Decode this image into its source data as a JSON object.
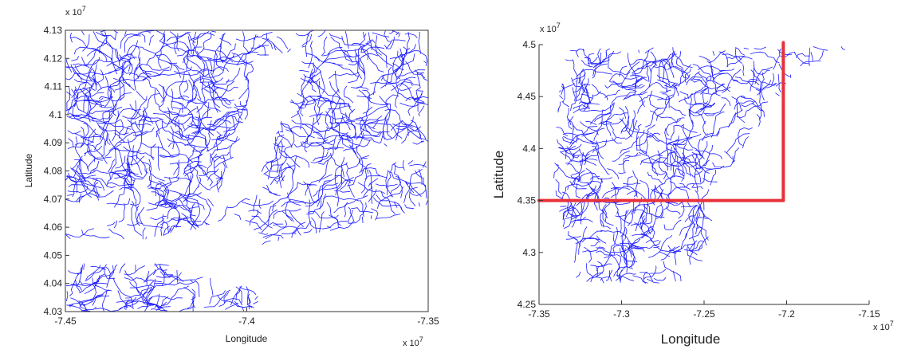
{
  "chart_data": [
    {
      "type": "line",
      "title": "",
      "xlabel": "Longitude",
      "ylabel": "Latitude",
      "x_exponent": "x 10",
      "x_exponent_power": "7",
      "y_exponent": "x 10",
      "y_exponent_power": "7",
      "xlim": [
        -7.45,
        -7.35
      ],
      "ylim": [
        4.03,
        4.13
      ],
      "x_ticks": [
        "-7.45",
        "-7.4",
        "-7.35"
      ],
      "x_tick_values": [
        -7.45,
        -7.4,
        -7.35
      ],
      "y_ticks": [
        "4.03",
        "4.04",
        "4.05",
        "4.06",
        "4.07",
        "4.08",
        "4.09",
        "4.1",
        "4.11",
        "4.12",
        "4.13"
      ],
      "y_tick_values": [
        4.03,
        4.04,
        4.05,
        4.06,
        4.07,
        4.08,
        4.09,
        4.1,
        4.11,
        4.12,
        4.13
      ],
      "series": [
        {
          "color": "#1a1aff",
          "description_points": []
        }
      ]
    },
    {
      "type": "line",
      "title": "",
      "xlabel": "Longitude",
      "ylabel": "Latitude",
      "x_exponent": "x 10",
      "x_exponent_power": "7",
      "y_exponent": "x 10",
      "y_exponent_power": "7",
      "xlim": [
        -7.35,
        -7.15
      ],
      "ylim": [
        4.25,
        4.5
      ],
      "x_ticks": [
        "-7.35",
        "-7.3",
        "-7.25",
        "-7.2",
        "-7.15"
      ],
      "x_tick_values": [
        -7.35,
        -7.3,
        -7.25,
        -7.2,
        -7.15
      ],
      "y_ticks": [
        "4.25",
        "4.3",
        "4.35",
        "4.4",
        "4.45",
        "4.5"
      ],
      "y_tick_values": [
        4.25,
        4.3,
        4.35,
        4.4,
        4.45,
        4.5
      ],
      "series": [
        {
          "color": "#1a1aff"
        }
      ],
      "overlay_lines": [
        {
          "color": "#e8313a",
          "x": [
            -7.35,
            -7.202
          ],
          "y": [
            4.35,
            4.35
          ]
        },
        {
          "color": "#e8313a",
          "x": [
            -7.202,
            -7.202
          ],
          "y": [
            4.35,
            4.502
          ]
        }
      ]
    }
  ]
}
